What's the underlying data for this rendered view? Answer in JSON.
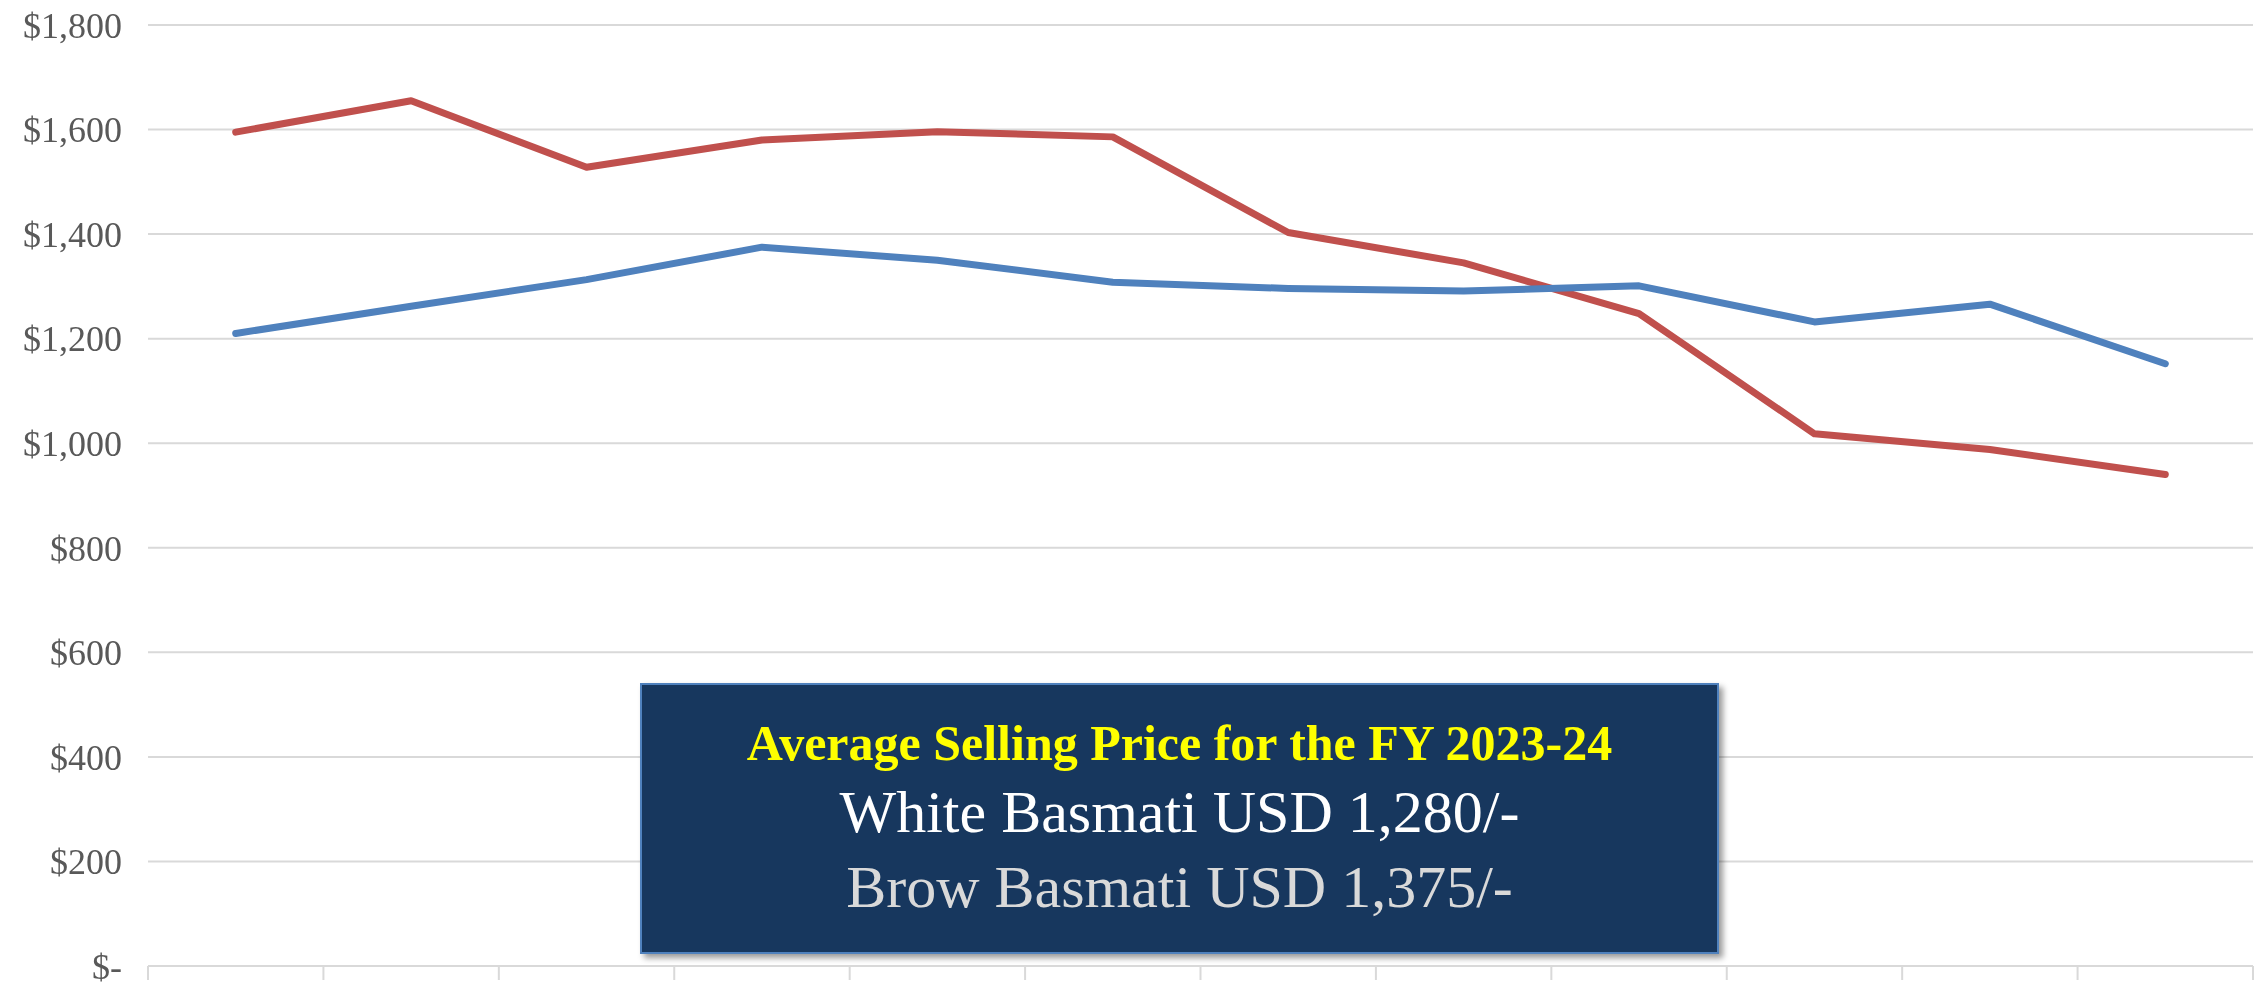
{
  "chart_data": {
    "type": "line",
    "categories": [
      null,
      null,
      null,
      null,
      null,
      null,
      null,
      null,
      null,
      null,
      null,
      null
    ],
    "series": [
      {
        "color": "#c0504d",
        "values": [
          1595,
          1655,
          1528,
          1580,
          1596,
          1586,
          1403,
          1345,
          1248,
          1018,
          988,
          940
        ]
      },
      {
        "color": "#4f81bd",
        "values": [
          1210,
          1262,
          1313,
          1375,
          1350,
          1308,
          1296,
          1291,
          1301,
          1232,
          1266,
          1152
        ]
      }
    ],
    "ylim": [
      0,
      1800
    ],
    "yticks": [
      {
        "value": 0,
        "label": "$-"
      },
      {
        "value": 200,
        "label": "$200"
      },
      {
        "value": 400,
        "label": "$400"
      },
      {
        "value": 600,
        "label": "$600"
      },
      {
        "value": 800,
        "label": "$800"
      },
      {
        "value": 1000,
        "label": "$1,000"
      },
      {
        "value": 1200,
        "label": "$1,200"
      },
      {
        "value": 1400,
        "label": "$1,400"
      },
      {
        "value": 1600,
        "label": "$1,600"
      },
      {
        "value": 1800,
        "label": "$1,800"
      }
    ],
    "grid": "y",
    "marker": "none",
    "line_style": "solid",
    "legend": false,
    "tick_labels": "y",
    "annotations": [
      "Average Selling Price for the FY 2023-24",
      "White Basmati USD 1,280/-",
      "Brow Basmati USD 1,375/-"
    ]
  }
}
